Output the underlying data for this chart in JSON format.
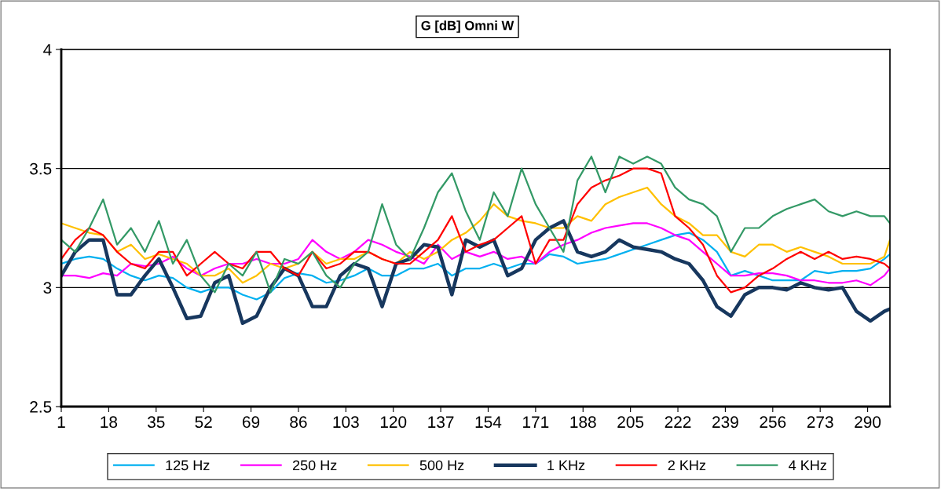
{
  "chart_data": {
    "type": "line",
    "title": "G [dB] Omni W",
    "x": [
      1,
      6,
      11,
      16,
      21,
      26,
      31,
      36,
      41,
      46,
      51,
      56,
      61,
      66,
      71,
      76,
      81,
      86,
      91,
      96,
      101,
      106,
      111,
      116,
      121,
      126,
      131,
      136,
      141,
      146,
      151,
      156,
      161,
      166,
      171,
      176,
      181,
      186,
      191,
      196,
      201,
      206,
      211,
      216,
      221,
      226,
      231,
      236,
      241,
      246,
      251,
      256,
      261,
      266,
      271,
      276,
      281,
      286,
      291,
      296,
      298
    ],
    "series": [
      {
        "name": "125 Hz",
        "color": "#00b0f0",
        "values": [
          3.1,
          3.12,
          3.13,
          3.12,
          3.08,
          3.05,
          3.03,
          3.05,
          3.04,
          3.0,
          2.98,
          3.0,
          3.0,
          2.97,
          2.95,
          2.98,
          3.04,
          3.06,
          3.05,
          3.02,
          3.03,
          3.05,
          3.08,
          3.05,
          3.05,
          3.08,
          3.08,
          3.1,
          3.05,
          3.08,
          3.08,
          3.1,
          3.08,
          3.1,
          3.1,
          3.14,
          3.13,
          3.1,
          3.11,
          3.12,
          3.14,
          3.16,
          3.18,
          3.2,
          3.22,
          3.23,
          3.2,
          3.15,
          3.05,
          3.07,
          3.05,
          3.03,
          3.03,
          3.03,
          3.07,
          3.06,
          3.07,
          3.07,
          3.08,
          3.12,
          3.14
        ]
      },
      {
        "name": "250 Hz",
        "color": "#ff00ff",
        "values": [
          3.05,
          3.05,
          3.04,
          3.06,
          3.05,
          3.1,
          3.09,
          3.1,
          3.13,
          3.08,
          3.05,
          3.08,
          3.1,
          3.1,
          3.12,
          3.1,
          3.1,
          3.12,
          3.2,
          3.15,
          3.12,
          3.15,
          3.2,
          3.18,
          3.15,
          3.13,
          3.1,
          3.18,
          3.12,
          3.15,
          3.13,
          3.15,
          3.12,
          3.13,
          3.1,
          3.15,
          3.18,
          3.2,
          3.23,
          3.25,
          3.26,
          3.27,
          3.27,
          3.25,
          3.22,
          3.2,
          3.15,
          3.1,
          3.05,
          3.05,
          3.06,
          3.06,
          3.05,
          3.03,
          3.03,
          3.02,
          3.02,
          3.03,
          3.01,
          3.05,
          3.08
        ]
      },
      {
        "name": "500 Hz",
        "color": "#ffc000",
        "values": [
          3.27,
          3.25,
          3.23,
          3.22,
          3.15,
          3.18,
          3.12,
          3.14,
          3.12,
          3.1,
          3.05,
          3.05,
          3.08,
          3.02,
          3.05,
          3.1,
          3.08,
          3.1,
          3.15,
          3.1,
          3.12,
          3.12,
          3.15,
          3.12,
          3.1,
          3.15,
          3.12,
          3.15,
          3.2,
          3.23,
          3.28,
          3.35,
          3.3,
          3.28,
          3.27,
          3.25,
          3.25,
          3.3,
          3.28,
          3.35,
          3.38,
          3.4,
          3.42,
          3.35,
          3.3,
          3.27,
          3.22,
          3.22,
          3.15,
          3.13,
          3.18,
          3.18,
          3.15,
          3.17,
          3.15,
          3.13,
          3.1,
          3.1,
          3.1,
          3.13,
          3.2
        ]
      },
      {
        "name": "1 KHz",
        "color": "#17375e",
        "values": [
          3.05,
          3.15,
          3.2,
          3.2,
          2.97,
          2.97,
          3.05,
          3.12,
          3.0,
          2.87,
          2.88,
          3.02,
          3.05,
          2.85,
          2.88,
          3.0,
          3.08,
          3.05,
          2.92,
          2.92,
          3.05,
          3.1,
          3.08,
          2.92,
          3.1,
          3.12,
          3.18,
          3.17,
          2.97,
          3.2,
          3.17,
          3.2,
          3.05,
          3.08,
          3.2,
          3.25,
          3.28,
          3.15,
          3.13,
          3.15,
          3.2,
          3.17,
          3.16,
          3.15,
          3.12,
          3.1,
          3.03,
          2.92,
          2.88,
          2.97,
          3.0,
          3.0,
          2.99,
          3.02,
          3.0,
          2.99,
          3.0,
          2.9,
          2.86,
          2.9,
          2.91
        ]
      },
      {
        "name": "2 KHz",
        "color": "#ff0000",
        "values": [
          3.12,
          3.2,
          3.25,
          3.22,
          3.15,
          3.1,
          3.08,
          3.15,
          3.15,
          3.05,
          3.1,
          3.15,
          3.1,
          3.08,
          3.15,
          3.15,
          3.08,
          3.05,
          3.15,
          3.08,
          3.1,
          3.15,
          3.15,
          3.12,
          3.1,
          3.1,
          3.15,
          3.2,
          3.3,
          3.15,
          3.18,
          3.2,
          3.25,
          3.3,
          3.1,
          3.2,
          3.2,
          3.35,
          3.42,
          3.45,
          3.47,
          3.5,
          3.5,
          3.48,
          3.3,
          3.25,
          3.18,
          3.05,
          2.98,
          3.0,
          3.05,
          3.08,
          3.12,
          3.15,
          3.12,
          3.15,
          3.12,
          3.13,
          3.12,
          3.1,
          3.08
        ]
      },
      {
        "name": "4 KHz",
        "color": "#339966",
        "values": [
          3.2,
          3.15,
          3.25,
          3.37,
          3.18,
          3.25,
          3.15,
          3.28,
          3.1,
          3.2,
          3.05,
          2.98,
          3.1,
          3.05,
          3.15,
          2.98,
          3.12,
          3.1,
          3.15,
          3.05,
          3.0,
          3.1,
          3.15,
          3.35,
          3.18,
          3.12,
          3.25,
          3.4,
          3.48,
          3.32,
          3.2,
          3.4,
          3.3,
          3.5,
          3.35,
          3.25,
          3.15,
          3.45,
          3.55,
          3.4,
          3.55,
          3.52,
          3.55,
          3.52,
          3.42,
          3.37,
          3.35,
          3.3,
          3.15,
          3.25,
          3.25,
          3.3,
          3.33,
          3.35,
          3.37,
          3.32,
          3.3,
          3.32,
          3.3,
          3.3,
          3.27
        ]
      }
    ],
    "xlim": [
      1,
      298
    ],
    "xticks": [
      1,
      18,
      35,
      52,
      69,
      86,
      103,
      120,
      137,
      154,
      171,
      188,
      205,
      222,
      239,
      256,
      273,
      290
    ],
    "ylim": [
      2.5,
      4
    ],
    "yticks": [
      2.5,
      3,
      3.5,
      4
    ],
    "grid": "y",
    "legend": "bottom",
    "marker": "none",
    "line_style": "solid"
  }
}
